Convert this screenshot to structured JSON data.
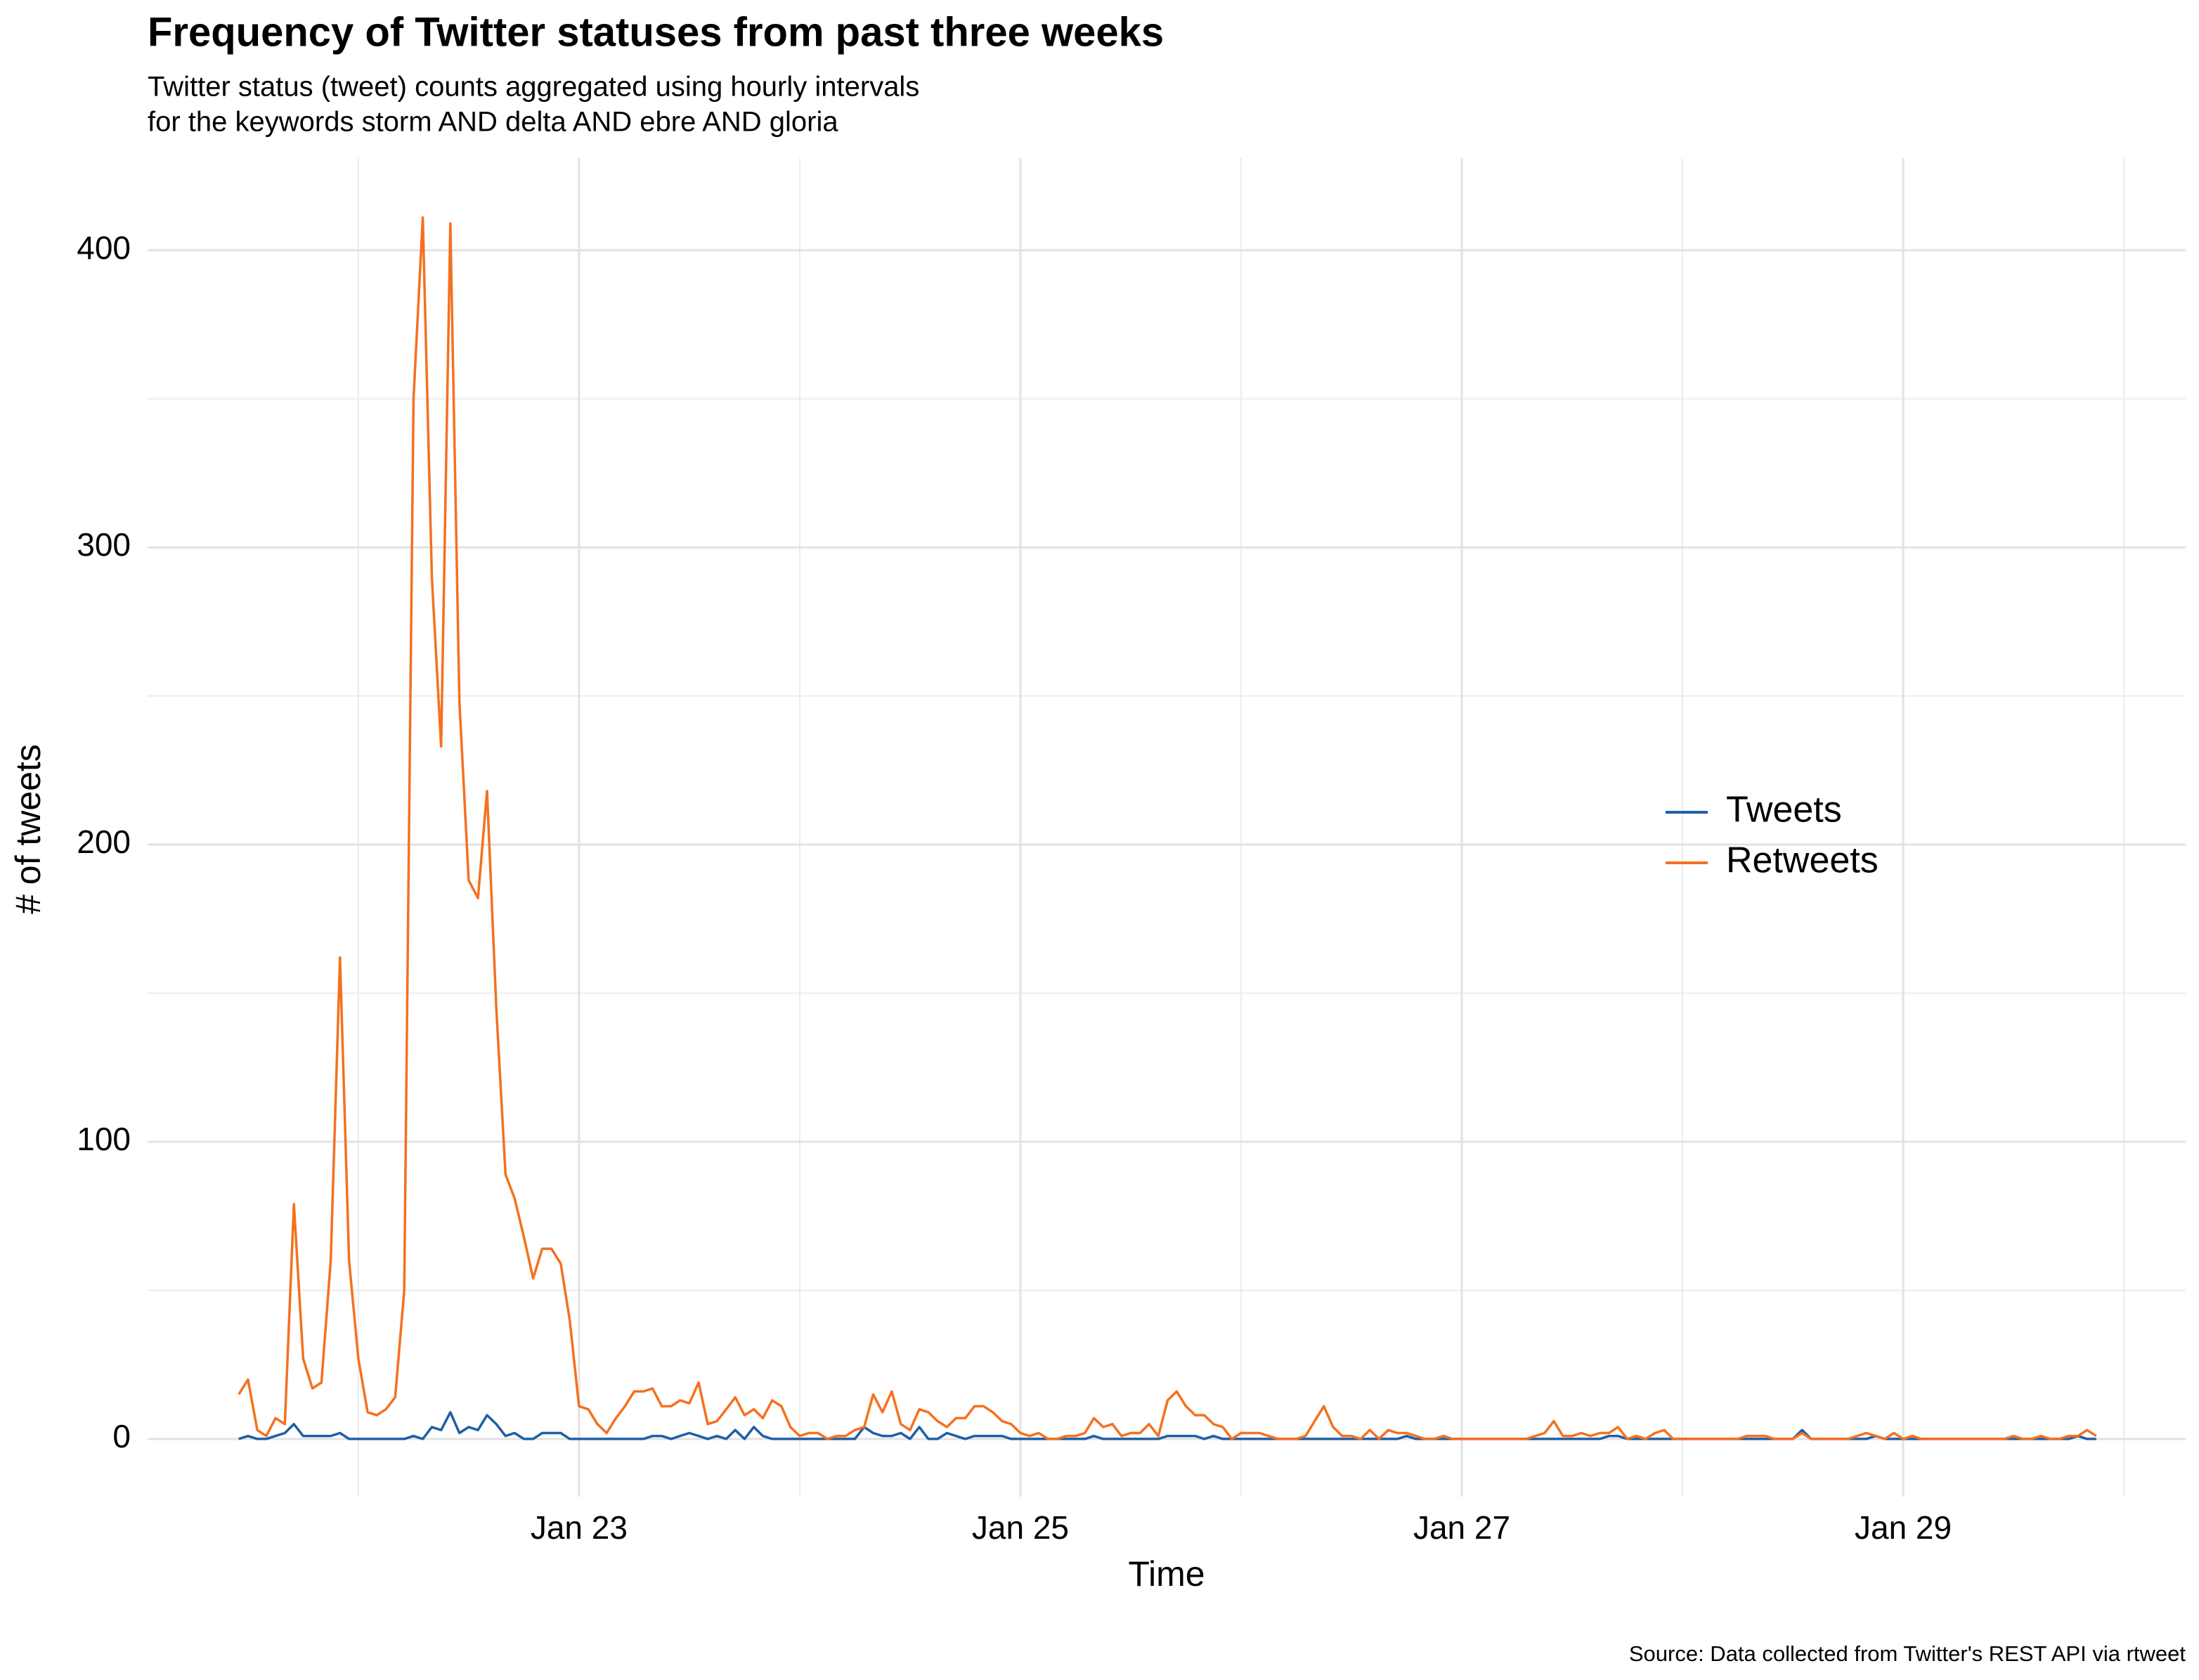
{
  "chart_data": {
    "type": "line",
    "title": "Frequency of Twitter statuses from past three weeks",
    "subtitle": [
      "Twitter status (tweet) counts aggregated using hourly intervals",
      "for the keywords storm AND delta AND ebre AND gloria"
    ],
    "xlabel": "Time",
    "ylabel": "# of tweets",
    "caption": "Source: Data collected from Twitter's REST API via rtweet",
    "x": [
      21.458,
      21.5,
      21.542,
      21.583,
      21.625,
      21.667,
      21.708,
      21.75,
      21.792,
      21.833,
      21.875,
      21.917,
      21.958,
      22,
      22.042,
      22.083,
      22.125,
      22.167,
      22.208,
      22.25,
      22.292,
      22.333,
      22.375,
      22.417,
      22.458,
      22.5,
      22.542,
      22.583,
      22.625,
      22.667,
      22.708,
      22.75,
      22.792,
      22.833,
      22.875,
      22.917,
      22.958,
      23,
      23.042,
      23.083,
      23.125,
      23.167,
      23.208,
      23.25,
      23.292,
      23.333,
      23.375,
      23.417,
      23.458,
      23.5,
      23.542,
      23.583,
      23.625,
      23.667,
      23.708,
      23.75,
      23.792,
      23.833,
      23.875,
      23.917,
      23.958,
      24,
      24.042,
      24.083,
      24.125,
      24.167,
      24.208,
      24.25,
      24.292,
      24.333,
      24.375,
      24.417,
      24.458,
      24.5,
      24.542,
      24.583,
      24.625,
      24.667,
      24.708,
      24.75,
      24.792,
      24.833,
      24.875,
      24.917,
      24.958,
      25,
      25.042,
      25.083,
      25.125,
      25.167,
      25.208,
      25.25,
      25.292,
      25.333,
      25.375,
      25.417,
      25.458,
      25.5,
      25.542,
      25.583,
      25.625,
      25.667,
      25.708,
      25.75,
      25.792,
      25.833,
      25.875,
      25.917,
      25.958,
      26,
      26.042,
      26.083,
      26.125,
      26.167,
      26.208,
      26.25,
      26.292,
      26.333,
      26.375,
      26.417,
      26.458,
      26.5,
      26.542,
      26.583,
      26.625,
      26.667,
      26.708,
      26.75,
      26.792,
      26.833,
      26.875,
      26.917,
      26.958,
      27,
      27.042,
      27.083,
      27.125,
      27.167,
      27.208,
      27.25,
      27.292,
      27.333,
      27.375,
      27.417,
      27.458,
      27.5,
      27.542,
      27.583,
      27.625,
      27.667,
      27.708,
      27.75,
      27.792,
      27.833,
      27.875,
      27.917,
      27.958,
      28,
      28.042,
      28.083,
      28.125,
      28.167,
      28.208,
      28.25,
      28.292,
      28.333,
      28.375,
      28.417,
      28.458,
      28.5,
      28.542,
      28.583,
      28.625,
      28.667,
      28.708,
      28.75,
      28.792,
      28.833,
      28.875,
      28.917,
      28.958,
      29,
      29.042,
      29.083,
      29.125,
      29.167,
      29.208,
      29.25,
      29.292,
      29.333,
      29.375,
      29.417,
      29.458,
      29.5,
      29.542,
      29.583,
      29.625,
      29.667,
      29.708,
      29.75,
      29.792,
      29.833,
      29.875
    ],
    "series": [
      {
        "name": "Tweets",
        "color": "#1f5fa6",
        "values": [
          0,
          1,
          0,
          0,
          1,
          2,
          5,
          1,
          1,
          1,
          1,
          2,
          0,
          0,
          0,
          0,
          0,
          0,
          0,
          1,
          0,
          4,
          3,
          9,
          2,
          4,
          3,
          8,
          5,
          1,
          2,
          0,
          0,
          2,
          2,
          2,
          0,
          0,
          0,
          0,
          0,
          0,
          0,
          0,
          0,
          1,
          1,
          0,
          1,
          2,
          1,
          0,
          1,
          0,
          3,
          0,
          4,
          1,
          0,
          0,
          0,
          0,
          0,
          0,
          0,
          0,
          0,
          0,
          4,
          2,
          1,
          1,
          2,
          0,
          4,
          0,
          0,
          2,
          1,
          0,
          1,
          1,
          1,
          1,
          0,
          0,
          0,
          0,
          0,
          0,
          0,
          0,
          0,
          1,
          0,
          0,
          0,
          0,
          0,
          0,
          0,
          1,
          1,
          1,
          1,
          0,
          1,
          0,
          0,
          0,
          0,
          0,
          0,
          0,
          0,
          0,
          0,
          0,
          0,
          0,
          0,
          0,
          0,
          0,
          0,
          0,
          0,
          1,
          0,
          0,
          0,
          0,
          0,
          0,
          0,
          0,
          0,
          0,
          0,
          0,
          0,
          0,
          0,
          0,
          0,
          0,
          0,
          0,
          0,
          1,
          1,
          0,
          0,
          0,
          0,
          0,
          0,
          0,
          0,
          0,
          0,
          0,
          0,
          0,
          0,
          0,
          0,
          0,
          0,
          0,
          3,
          0,
          0,
          0,
          0,
          0,
          0,
          0,
          1,
          0,
          0,
          0,
          0,
          0,
          0,
          0,
          0,
          0,
          0,
          0,
          0,
          0,
          0,
          0,
          0,
          0,
          0,
          0,
          0,
          0,
          1,
          0,
          0
        ]
      },
      {
        "name": "Retweets",
        "color": "#f4711f",
        "values": [
          15,
          20,
          3,
          1,
          7,
          5,
          79,
          27,
          17,
          19,
          60,
          162,
          60,
          27,
          9,
          8,
          10,
          14,
          50,
          350,
          411,
          290,
          233,
          409,
          248,
          188,
          182,
          218,
          145,
          89,
          81,
          68,
          54,
          64,
          64,
          59,
          40,
          11,
          10,
          5,
          2,
          7,
          11,
          16,
          16,
          17,
          11,
          11,
          13,
          12,
          19,
          5,
          6,
          10,
          14,
          8,
          10,
          7,
          13,
          11,
          4,
          1,
          2,
          2,
          0,
          1,
          1,
          3,
          4,
          15,
          9,
          16,
          5,
          3,
          10,
          9,
          6,
          4,
          7,
          7,
          11,
          11,
          9,
          6,
          5,
          2,
          1,
          2,
          0,
          0,
          1,
          1,
          2,
          7,
          4,
          5,
          1,
          2,
          2,
          5,
          1,
          13,
          16,
          11,
          8,
          8,
          5,
          4,
          0,
          2,
          2,
          2,
          1,
          0,
          0,
          0,
          1,
          6,
          11,
          4,
          1,
          1,
          0,
          3,
          0,
          3,
          2,
          2,
          1,
          0,
          0,
          1,
          0,
          0,
          0,
          0,
          0,
          0,
          0,
          0,
          0,
          1,
          2,
          6,
          1,
          1,
          2,
          1,
          2,
          2,
          4,
          0,
          1,
          0,
          2,
          3,
          0,
          0,
          0,
          0,
          0,
          0,
          0,
          0,
          1,
          1,
          1,
          0,
          0,
          0,
          2,
          0,
          0,
          0,
          0,
          0,
          1,
          2,
          1,
          0,
          2,
          0,
          1,
          0,
          0,
          0,
          0,
          0,
          0,
          0,
          0,
          0,
          0,
          1,
          0,
          0,
          1,
          0,
          0,
          1,
          1,
          3,
          1
        ]
      }
    ],
    "xlim": [
      21.045,
      30.28
    ],
    "xticks": [
      {
        "value": 23,
        "label": "Jan 23"
      },
      {
        "value": 25,
        "label": "Jan 25"
      },
      {
        "value": 27,
        "label": "Jan 27"
      },
      {
        "value": 29,
        "label": "Jan 29"
      }
    ],
    "xminor": [
      22,
      24,
      26,
      28,
      30
    ],
    "ylim": [
      -19.4,
      431
    ],
    "yticks": [
      0,
      100,
      200,
      300,
      400
    ],
    "yminor": [
      50,
      150,
      250,
      350
    ],
    "grid": true,
    "legend": "right"
  }
}
